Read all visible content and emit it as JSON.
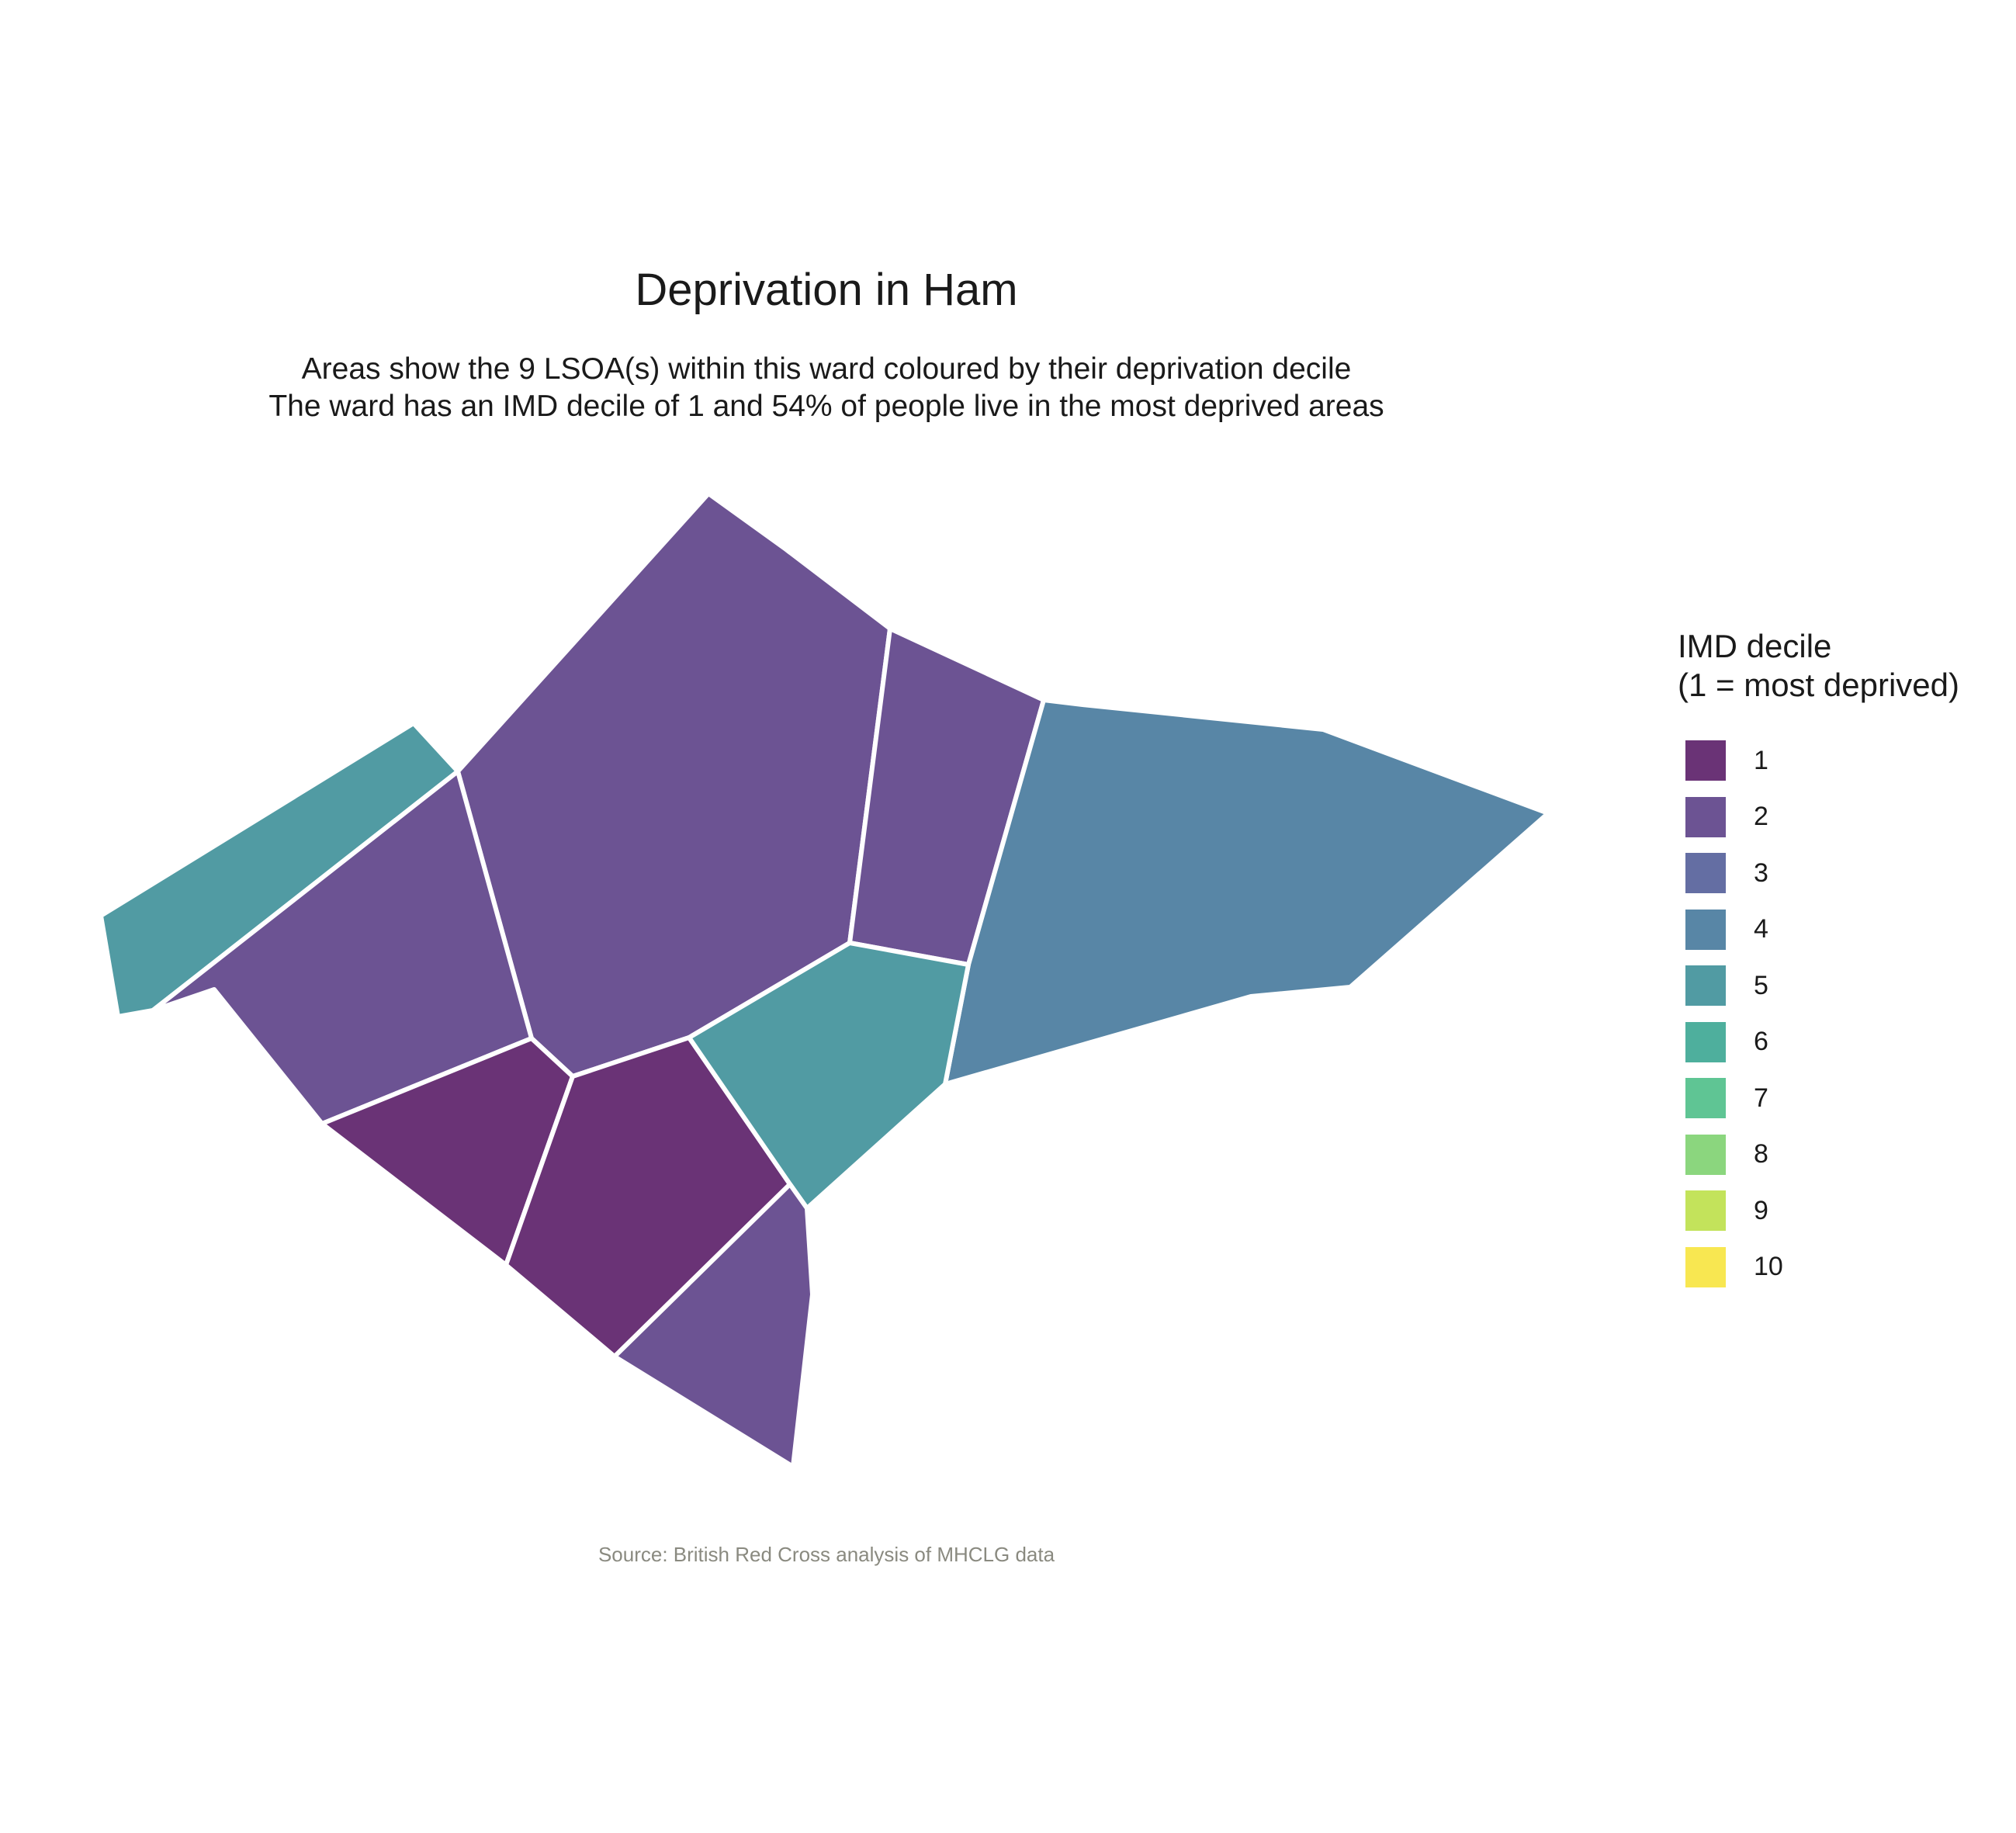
{
  "title": "Deprivation in Ham",
  "subtitle": [
    "Areas show the 9 LSOA(s) within this ward coloured by their deprivation decile",
    "The ward has an IMD decile of 1 and 54% of people live in the most deprived areas"
  ],
  "caption": "Source: British Red Cross analysis of MHCLG data",
  "legend": {
    "title": [
      "IMD decile",
      "(1 = most deprived)"
    ],
    "items": [
      {
        "label": "1",
        "color": "#6a3376"
      },
      {
        "label": "2",
        "color": "#6c5393"
      },
      {
        "label": "3",
        "color": "#646ea3"
      },
      {
        "label": "4",
        "color": "#5886a6"
      },
      {
        "label": "5",
        "color": "#519ba3"
      },
      {
        "label": "6",
        "color": "#4eaf9d"
      },
      {
        "label": "7",
        "color": "#5fc594"
      },
      {
        "label": "8",
        "color": "#8bd67e"
      },
      {
        "label": "9",
        "color": "#c3e35b"
      },
      {
        "label": "10",
        "color": "#f8e751"
      }
    ]
  },
  "chart_data": {
    "type": "choropleth",
    "ward": "Ham",
    "lsoa_count": 9,
    "ward_imd_decile": 1,
    "pct_most_deprived": 54,
    "areas": [
      {
        "id": "north-central",
        "decile": 2
      },
      {
        "id": "north-east-small",
        "decile": 2
      },
      {
        "id": "east",
        "decile": 4
      },
      {
        "id": "north-west-strip",
        "decile": 5
      },
      {
        "id": "west",
        "decile": 2
      },
      {
        "id": "south-west",
        "decile": 1
      },
      {
        "id": "south-central",
        "decile": 1
      },
      {
        "id": "central-east",
        "decile": 5
      },
      {
        "id": "south",
        "decile": 2
      }
    ]
  }
}
